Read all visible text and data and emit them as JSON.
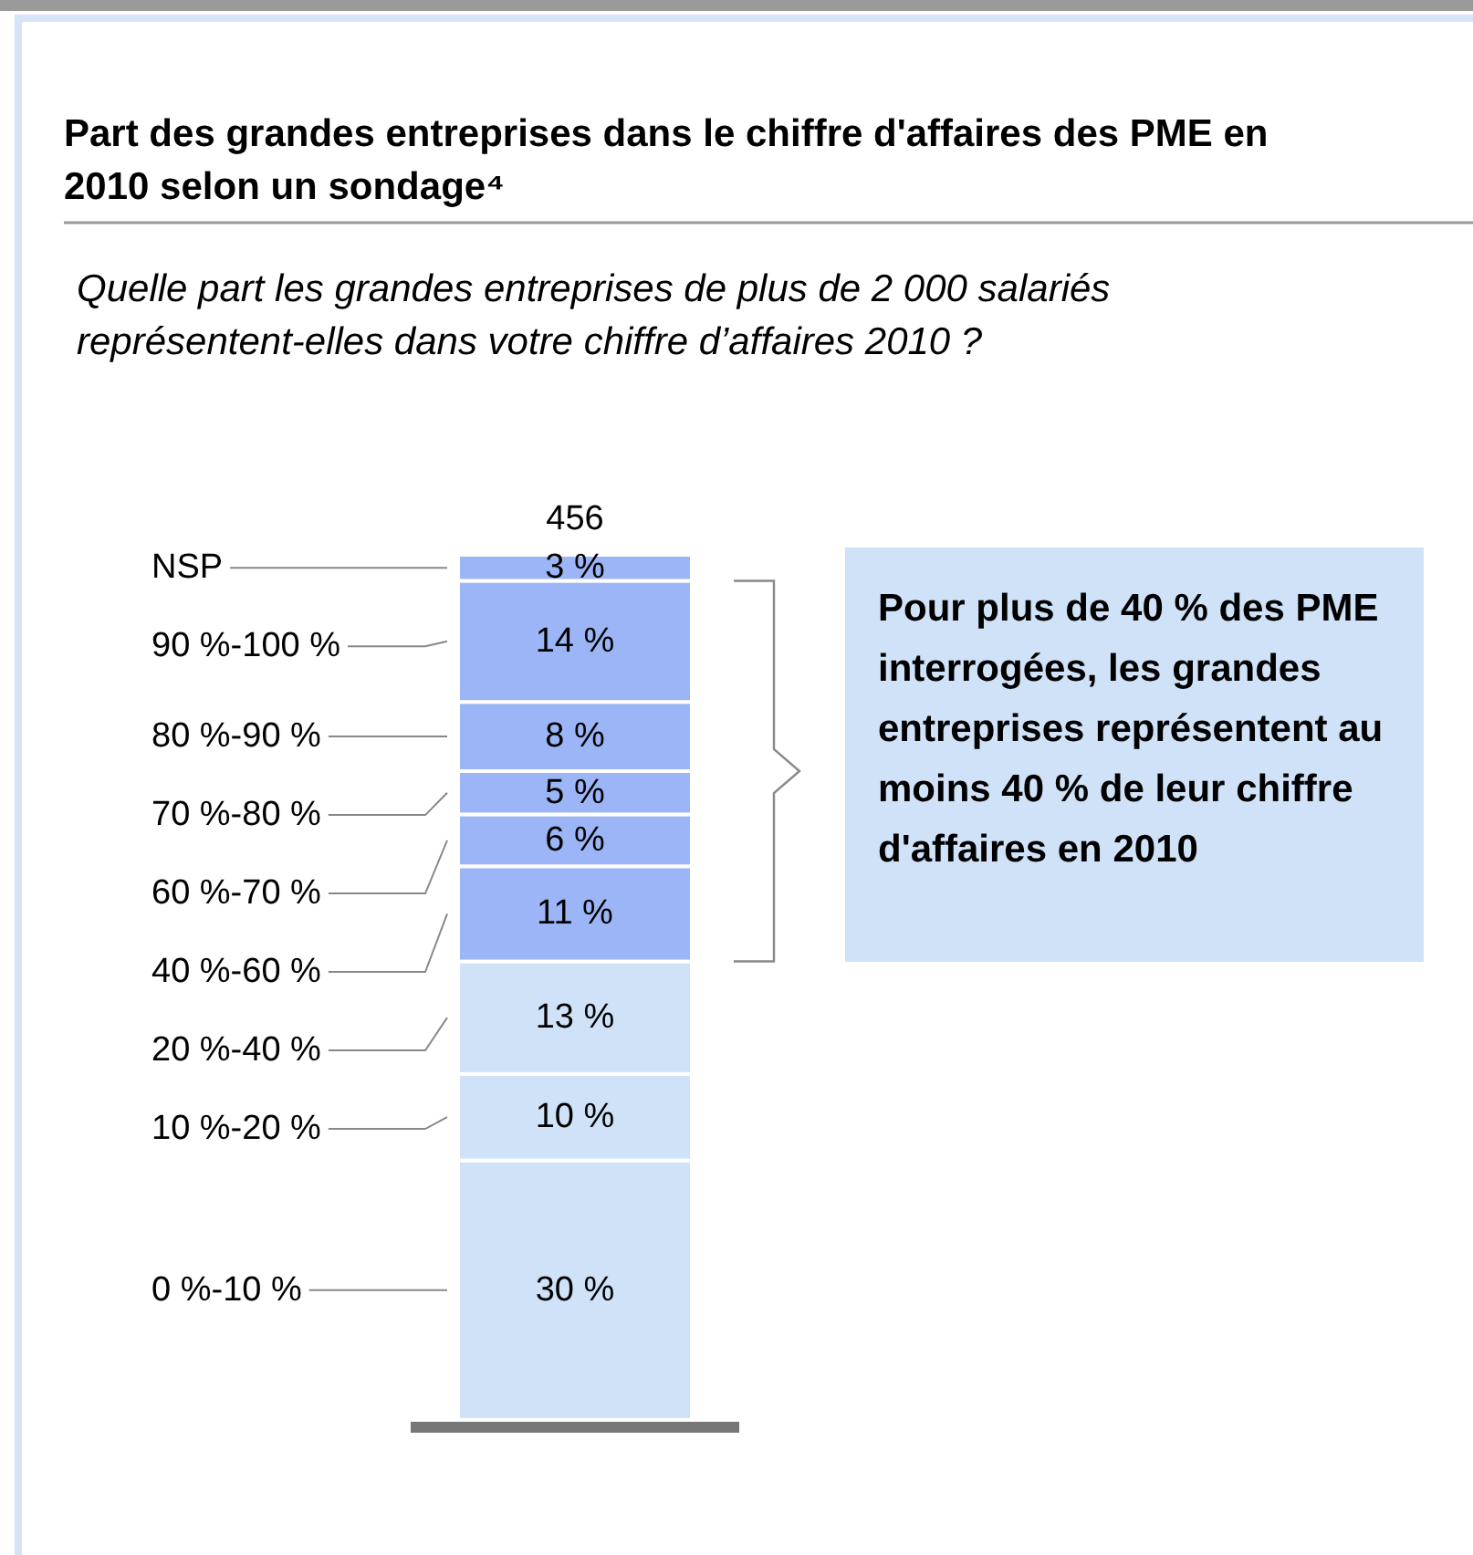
{
  "chart_data": {
    "type": "bar",
    "stacked": true,
    "title": "Part des grandes entreprises dans le chiffre d'affaires des PME en 2010 selon un sondage⁴",
    "subtitle": "Quelle part les grandes entreprises de plus de 2 000 salariés représentent-elles dans votre chiffre d’affaires 2010 ?",
    "categories": [
      null
    ],
    "series": [
      {
        "name": "0 %-10 %",
        "color": "#cfe2f8",
        "values": [
          30
        ],
        "value_labels": [
          "30 %"
        ]
      },
      {
        "name": "10 %-20 %",
        "color": "#cfe2f8",
        "values": [
          10
        ],
        "value_labels": [
          "10 %"
        ]
      },
      {
        "name": "20 %-40 %",
        "color": "#cfe2f8",
        "values": [
          13
        ],
        "value_labels": [
          "13 %"
        ]
      },
      {
        "name": "40 %-60 %",
        "color": "#9bb5f6",
        "values": [
          11
        ],
        "value_labels": [
          "11 %"
        ]
      },
      {
        "name": "60 %-70 %",
        "color": "#9bb5f6",
        "values": [
          6
        ],
        "value_labels": [
          "6 %"
        ]
      },
      {
        "name": "70 %-80 %",
        "color": "#9bb5f6",
        "values": [
          5
        ],
        "value_labels": [
          "5 %"
        ]
      },
      {
        "name": "80 %-90 %",
        "color": "#9bb5f6",
        "values": [
          8
        ],
        "value_labels": [
          "8 %"
        ]
      },
      {
        "name": "90 %-100 %",
        "color": "#9bb5f6",
        "values": [
          14
        ],
        "value_labels": [
          "14 %"
        ]
      },
      {
        "name": "NSP",
        "color": "#9bb5f6",
        "values": [
          3
        ],
        "value_labels": [
          "3 %"
        ]
      }
    ],
    "annotations": [
      "456",
      "Pour plus de 40 % des PME interrogées, les grandes entreprises représentent au moins 40 % de leur chiffre d'affaires en 2010"
    ]
  }
}
